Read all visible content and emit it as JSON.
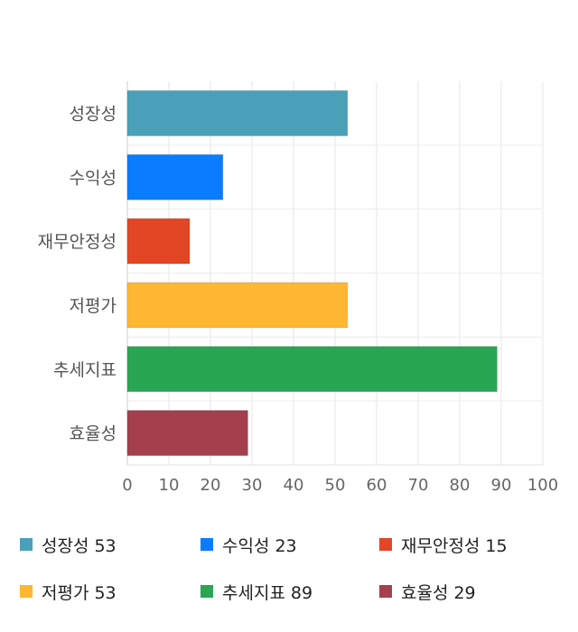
{
  "chart_data": {
    "type": "bar",
    "orientation": "horizontal",
    "categories": [
      "성장성",
      "수익성",
      "재무안정성",
      "저평가",
      "추세지표",
      "효율성"
    ],
    "values": [
      53,
      23,
      15,
      53,
      89,
      29
    ],
    "colors": [
      "#4aa0b8",
      "#0a7cff",
      "#e34624",
      "#ffb731",
      "#28a653",
      "#a4404e"
    ],
    "xlim": [
      0,
      100
    ],
    "ticks": [
      0,
      10,
      20,
      30,
      40,
      50,
      60,
      70,
      80,
      90,
      100
    ],
    "grid": true,
    "legend_position": "bottom"
  },
  "legend": {
    "items": [
      {
        "label": "성장성",
        "value": "53",
        "color": "#4aa0b8"
      },
      {
        "label": "수익성",
        "value": "23",
        "color": "#0a7cff"
      },
      {
        "label": "재무안정성",
        "value": "15",
        "color": "#e34624"
      },
      {
        "label": "저평가",
        "value": "53",
        "color": "#ffb731"
      },
      {
        "label": "추세지표",
        "value": "89",
        "color": "#28a653"
      },
      {
        "label": "효율성",
        "value": "29",
        "color": "#a4404e"
      }
    ]
  }
}
